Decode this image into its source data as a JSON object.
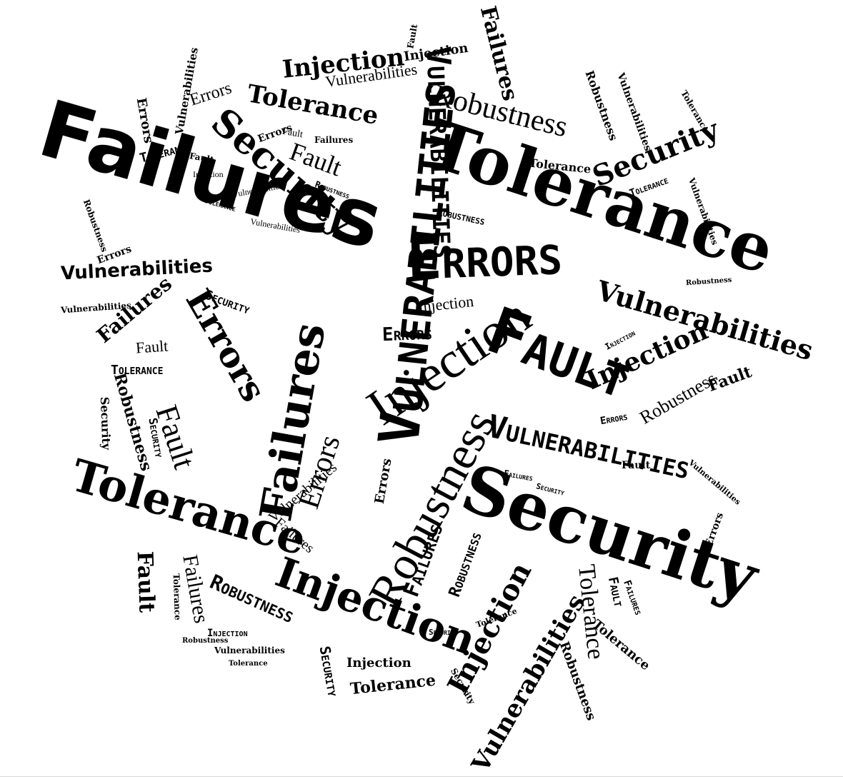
{
  "words": [
    "Failures",
    "Tolerance",
    "Errors",
    "Vulnerabilities",
    "Fault",
    "Injection",
    "Security",
    "Robustness"
  ],
  "colors": {
    "ink": "#000000",
    "background": "#ffffff"
  }
}
